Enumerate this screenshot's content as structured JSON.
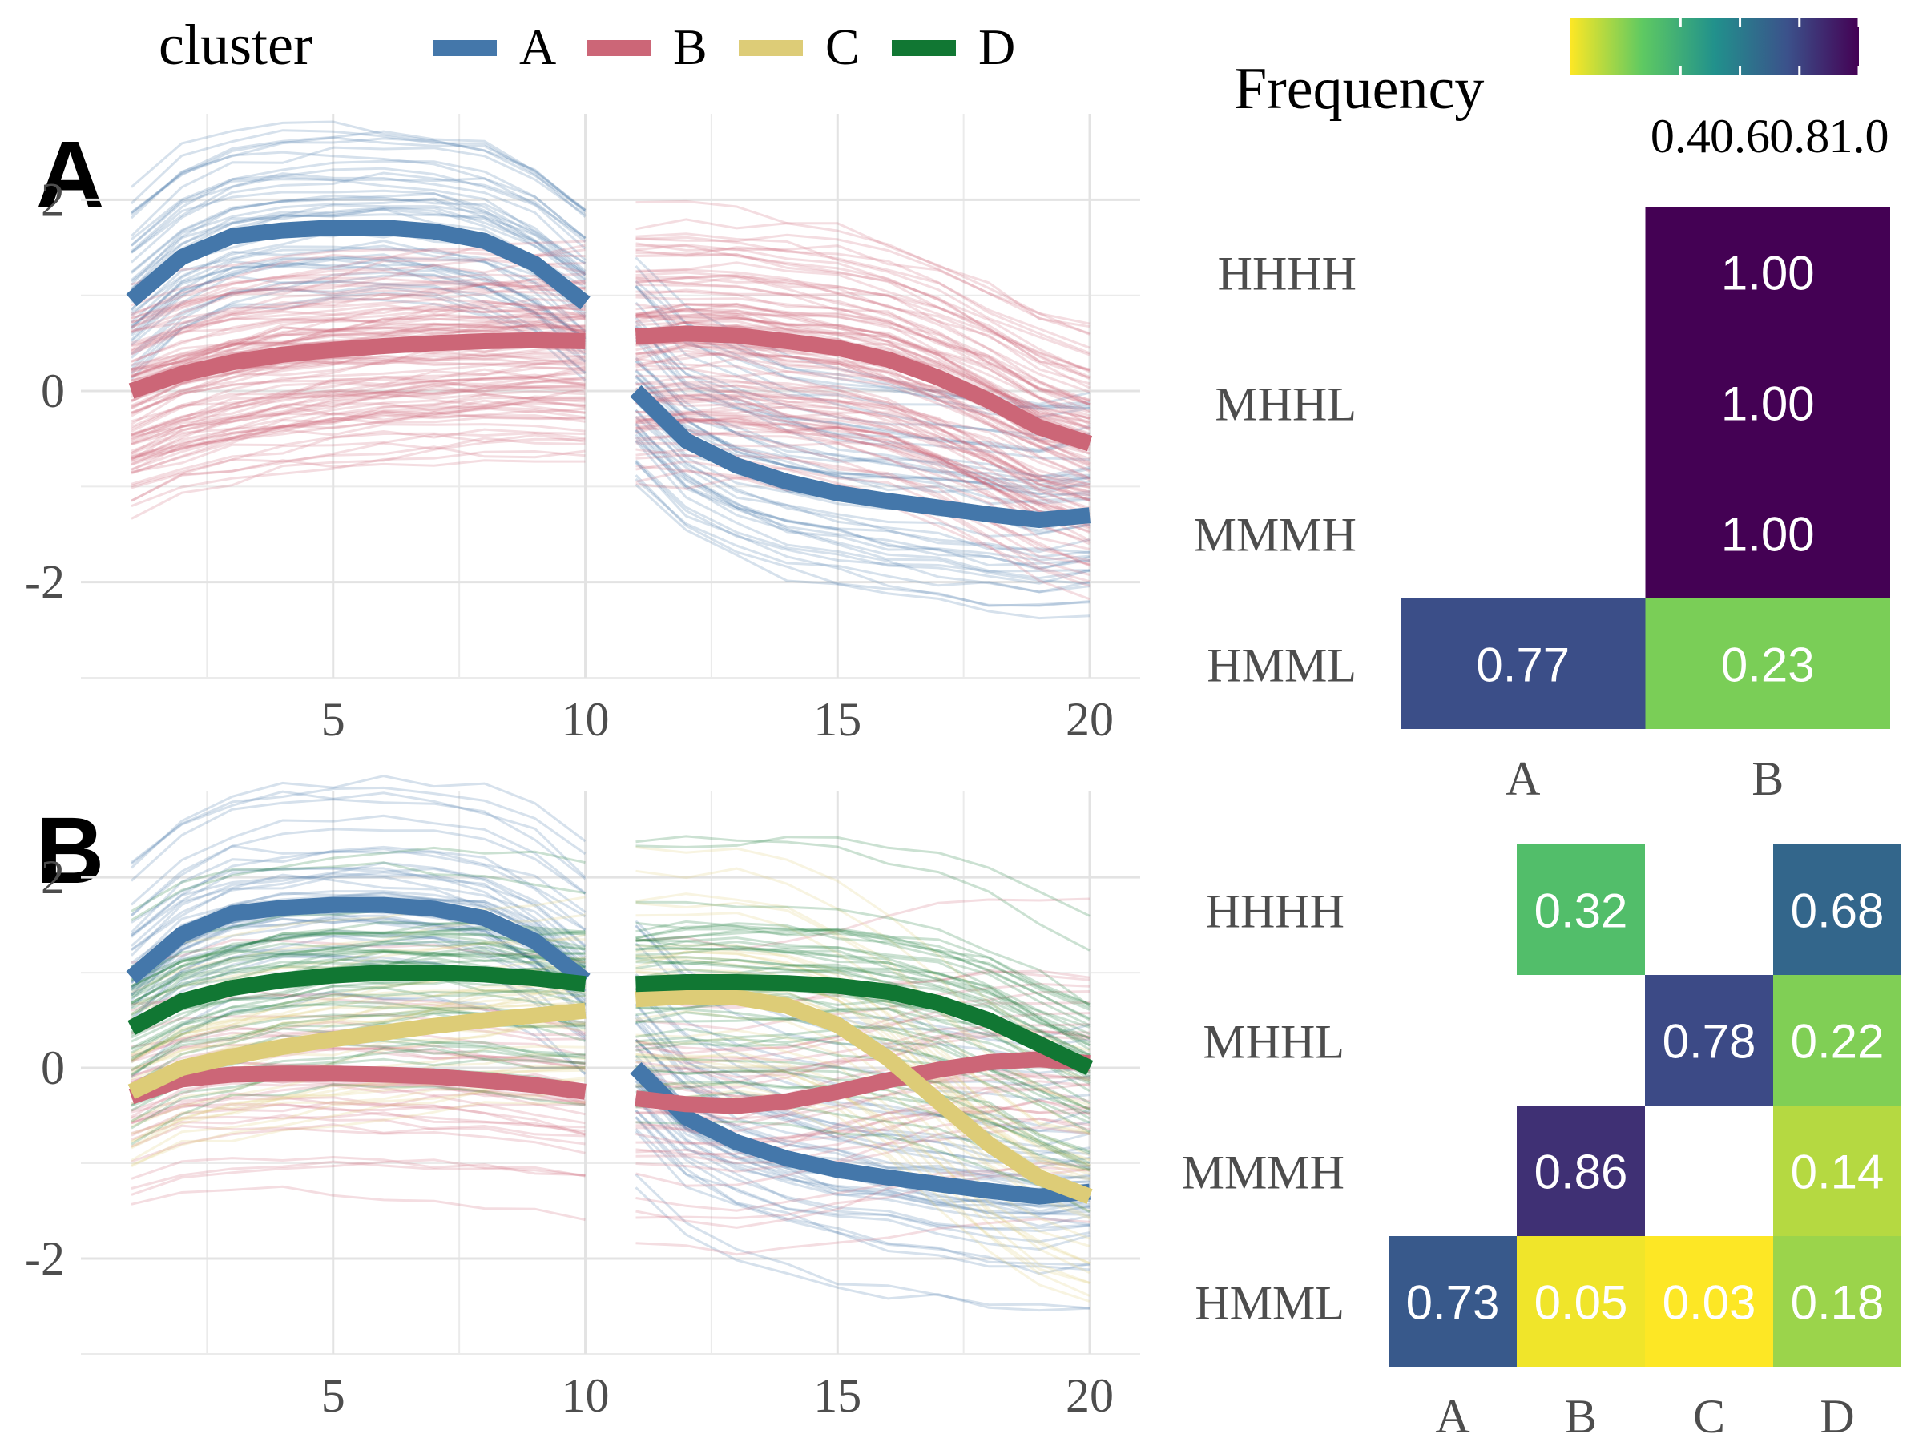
{
  "legend": {
    "title": "cluster",
    "items": [
      {
        "label": "A",
        "color": "#4477AA"
      },
      {
        "label": "B",
        "color": "#CC6677"
      },
      {
        "label": "C",
        "color": "#DDCC77"
      },
      {
        "label": "D",
        "color": "#117733"
      }
    ]
  },
  "colorbar": {
    "title": "Frequency",
    "ticks": [
      "0.4",
      "0.6",
      "0.8",
      "1.0"
    ],
    "tick_values": [
      0.4,
      0.6,
      0.8,
      1.0
    ],
    "range": [
      0.03,
      1.0
    ],
    "palette": "viridis-reversed"
  },
  "chart_data": [
    {
      "panel_tag": "A",
      "type": "line",
      "xlim": [
        0,
        21
      ],
      "ylim": [
        -3.0,
        2.9
      ],
      "x_ticks": [
        5,
        10,
        15,
        20
      ],
      "y_ticks": [
        2,
        0,
        -2
      ],
      "y_tick_labels": [
        "2",
        "0",
        "-2"
      ],
      "grid": true,
      "series": [
        {
          "name": "A",
          "color": "#4477AA",
          "segments": [
            {
              "x": [
                1,
                2,
                3,
                4,
                5,
                6,
                7,
                8,
                9,
                10
              ],
              "y": [
                0.95,
                1.4,
                1.62,
                1.68,
                1.71,
                1.71,
                1.67,
                1.57,
                1.33,
                0.92
              ]
            },
            {
              "x": [
                11,
                12,
                13,
                14,
                15,
                16,
                17,
                18,
                19,
                20
              ],
              "y": [
                0.0,
                -0.52,
                -0.78,
                -0.95,
                -1.07,
                -1.15,
                -1.22,
                -1.29,
                -1.35,
                -1.3
              ]
            }
          ]
        },
        {
          "name": "B",
          "color": "#CC6677",
          "segments": [
            {
              "x": [
                1,
                2,
                3,
                4,
                5,
                6,
                7,
                8,
                9,
                10
              ],
              "y": [
                0.0,
                0.18,
                0.3,
                0.38,
                0.43,
                0.47,
                0.5,
                0.52,
                0.53,
                0.52
              ]
            },
            {
              "x": [
                11,
                12,
                13,
                14,
                15,
                16,
                17,
                18,
                19,
                20
              ],
              "y": [
                0.57,
                0.6,
                0.58,
                0.52,
                0.45,
                0.33,
                0.14,
                -0.1,
                -0.38,
                -0.55
              ]
            }
          ]
        }
      ],
      "background_lines": {
        "A": 45,
        "B": 100
      }
    },
    {
      "panel_tag": "A",
      "type": "heatmap",
      "x_categories": [
        "A",
        "B"
      ],
      "y_categories": [
        "HHHH",
        "MHHL",
        "MMMH",
        "HMML"
      ],
      "cells": [
        {
          "x": "B",
          "y": "HHHH",
          "value": 1.0,
          "label": "1.00"
        },
        {
          "x": "B",
          "y": "MHHL",
          "value": 1.0,
          "label": "1.00"
        },
        {
          "x": "B",
          "y": "MMMH",
          "value": 1.0,
          "label": "1.00"
        },
        {
          "x": "A",
          "y": "HMML",
          "value": 0.77,
          "label": "0.77"
        },
        {
          "x": "B",
          "y": "HMML",
          "value": 0.23,
          "label": "0.23"
        }
      ]
    },
    {
      "panel_tag": "B",
      "type": "line",
      "xlim": [
        0,
        21
      ],
      "ylim": [
        -3.0,
        2.9
      ],
      "x_ticks": [
        5,
        10,
        15,
        20
      ],
      "y_ticks": [
        2,
        0,
        -2
      ],
      "y_tick_labels": [
        "2",
        "0",
        "-2"
      ],
      "grid": true,
      "series": [
        {
          "name": "A",
          "color": "#4477AA",
          "segments": [
            {
              "x": [
                1,
                2,
                3,
                4,
                5,
                6,
                7,
                8,
                9,
                10
              ],
              "y": [
                0.95,
                1.4,
                1.62,
                1.68,
                1.71,
                1.71,
                1.67,
                1.57,
                1.33,
                0.92
              ]
            },
            {
              "x": [
                11,
                12,
                13,
                14,
                15,
                16,
                17,
                18,
                19,
                20
              ],
              "y": [
                0.0,
                -0.52,
                -0.78,
                -0.95,
                -1.07,
                -1.15,
                -1.22,
                -1.29,
                -1.35,
                -1.3
              ]
            }
          ]
        },
        {
          "name": "B",
          "color": "#CC6677",
          "segments": [
            {
              "x": [
                1,
                2,
                3,
                4,
                5,
                6,
                7,
                8,
                9,
                10
              ],
              "y": [
                -0.3,
                -0.12,
                -0.07,
                -0.06,
                -0.06,
                -0.07,
                -0.09,
                -0.13,
                -0.18,
                -0.25
              ]
            },
            {
              "x": [
                11,
                12,
                13,
                14,
                15,
                16,
                17,
                18,
                19,
                20
              ],
              "y": [
                -0.32,
                -0.38,
                -0.4,
                -0.35,
                -0.25,
                -0.13,
                -0.02,
                0.06,
                0.09,
                0.05
              ]
            }
          ]
        },
        {
          "name": "C",
          "color": "#DDCC77",
          "segments": [
            {
              "x": [
                1,
                2,
                3,
                4,
                5,
                6,
                7,
                8,
                9,
                10
              ],
              "y": [
                -0.25,
                0.0,
                0.12,
                0.22,
                0.3,
                0.37,
                0.44,
                0.5,
                0.55,
                0.6
              ]
            },
            {
              "x": [
                11,
                12,
                13,
                14,
                15,
                16,
                17,
                18,
                19,
                20
              ],
              "y": [
                0.72,
                0.75,
                0.74,
                0.65,
                0.45,
                0.1,
                -0.35,
                -0.8,
                -1.15,
                -1.35
              ]
            }
          ]
        },
        {
          "name": "D",
          "color": "#117733",
          "segments": [
            {
              "x": [
                1,
                2,
                3,
                4,
                5,
                6,
                7,
                8,
                9,
                10
              ],
              "y": [
                0.42,
                0.7,
                0.84,
                0.92,
                0.97,
                1.0,
                1.0,
                0.98,
                0.94,
                0.88
              ]
            },
            {
              "x": [
                11,
                12,
                13,
                14,
                15,
                16,
                17,
                18,
                19,
                20
              ],
              "y": [
                0.88,
                0.9,
                0.9,
                0.89,
                0.86,
                0.8,
                0.68,
                0.5,
                0.25,
                0.0
              ]
            }
          ]
        }
      ],
      "background_lines": {
        "A": 45,
        "B": 35,
        "C": 30,
        "D": 45
      }
    },
    {
      "panel_tag": "B",
      "type": "heatmap",
      "x_categories": [
        "A",
        "B",
        "C",
        "D"
      ],
      "y_categories": [
        "HHHH",
        "MHHL",
        "MMMH",
        "HMML"
      ],
      "cells": [
        {
          "x": "B",
          "y": "HHHH",
          "value": 0.32,
          "label": "0.32"
        },
        {
          "x": "D",
          "y": "HHHH",
          "value": 0.68,
          "label": "0.68"
        },
        {
          "x": "C",
          "y": "MHHL",
          "value": 0.78,
          "label": "0.78"
        },
        {
          "x": "D",
          "y": "MHHL",
          "value": 0.22,
          "label": "0.22"
        },
        {
          "x": "B",
          "y": "MMMH",
          "value": 0.86,
          "label": "0.86"
        },
        {
          "x": "D",
          "y": "MMMH",
          "value": 0.14,
          "label": "0.14"
        },
        {
          "x": "A",
          "y": "HMML",
          "value": 0.73,
          "label": "0.73"
        },
        {
          "x": "B",
          "y": "HMML",
          "value": 0.05,
          "label": "0.05"
        },
        {
          "x": "C",
          "y": "HMML",
          "value": 0.03,
          "label": "0.03"
        },
        {
          "x": "D",
          "y": "HMML",
          "value": 0.18,
          "label": "0.18"
        }
      ]
    }
  ]
}
